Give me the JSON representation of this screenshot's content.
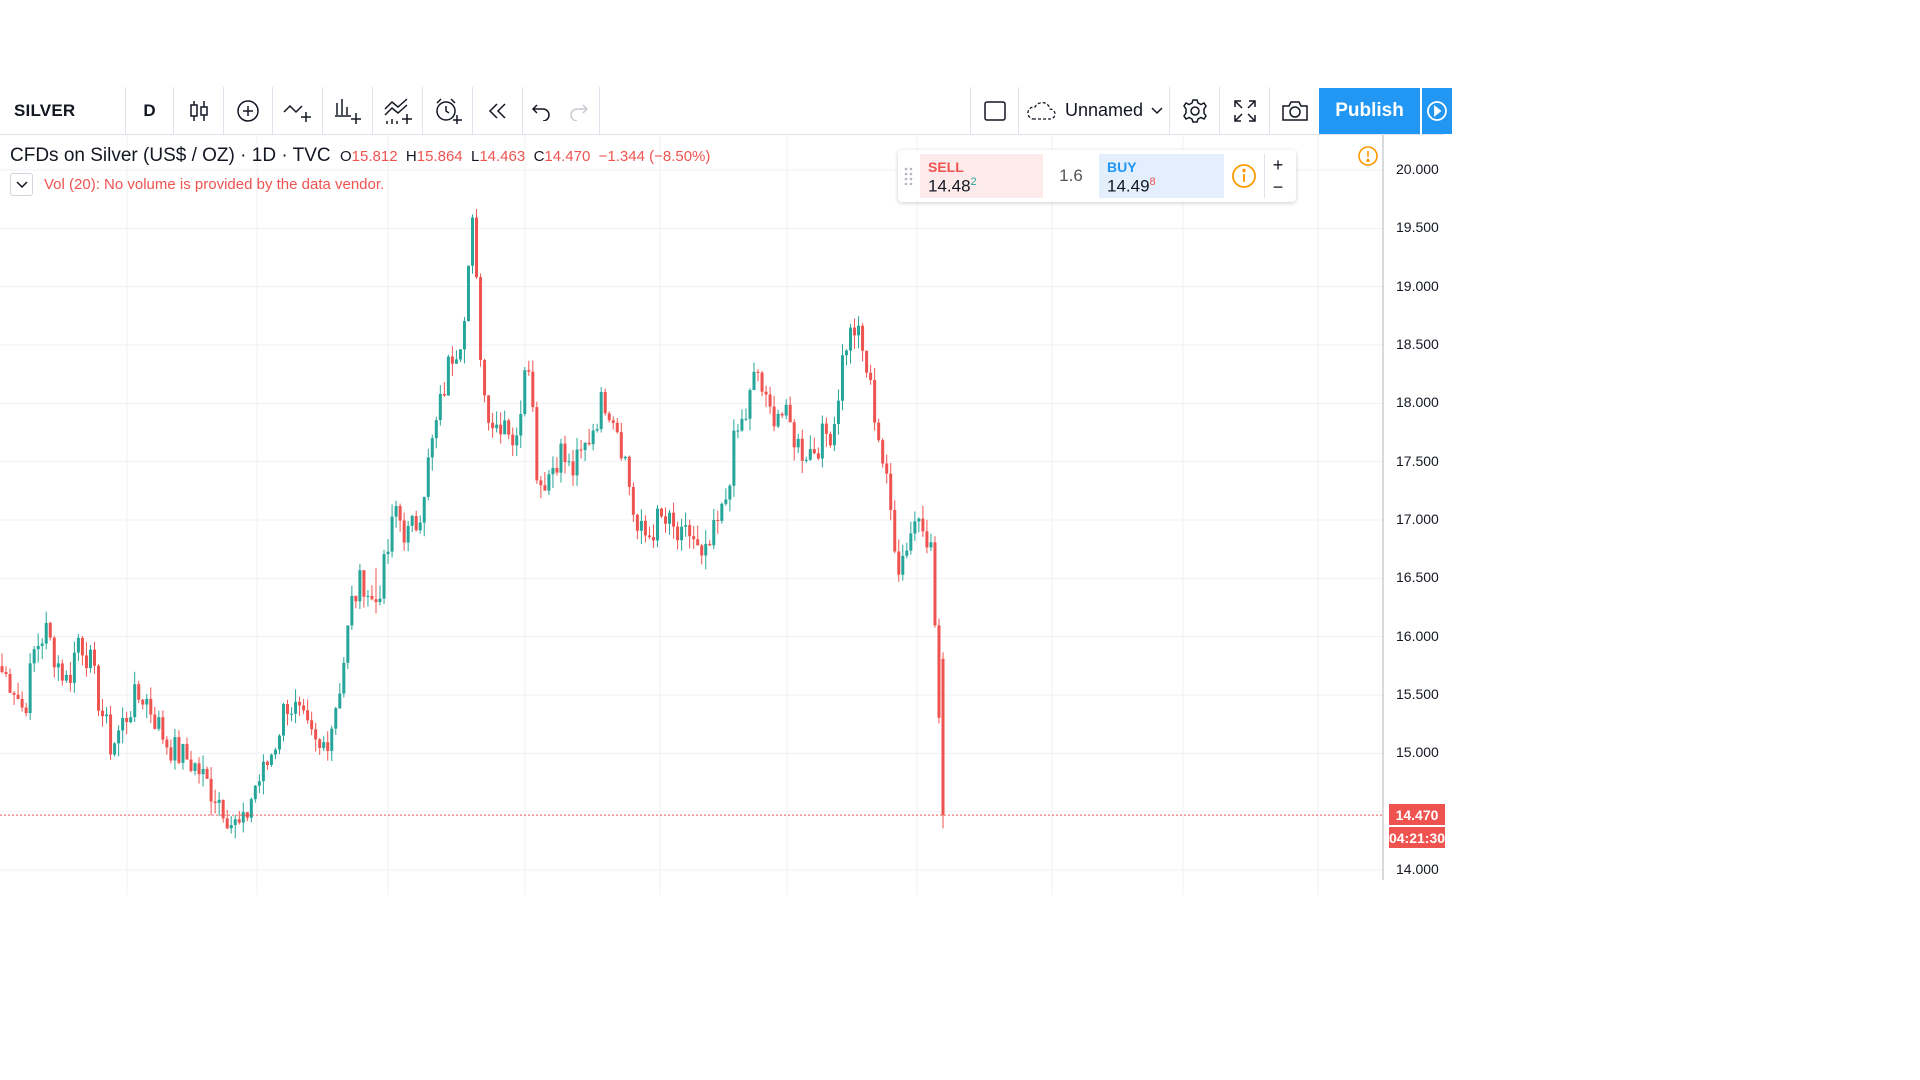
{
  "toolbar": {
    "symbol": "SILVER",
    "interval": "D",
    "layout_name": "Unnamed",
    "publish_label": "Publish",
    "icons": [
      "candles-icon",
      "add-symbol-icon",
      "indicators-icon",
      "financials-icon",
      "templates-icon",
      "alert-icon",
      "replay-icon",
      "undo-icon",
      "redo-icon",
      "layout-icon",
      "cloud-icon",
      "settings-icon",
      "fullscreen-icon",
      "screenshot-icon",
      "play-icon"
    ]
  },
  "legend": {
    "title": "CFDs on Silver (US$ / OZ)",
    "interval": "1D",
    "source": "TVC",
    "open_label": "O",
    "open": "15.812",
    "high_label": "H",
    "high": "15.864",
    "low_label": "L",
    "low": "14.463",
    "close_label": "C",
    "close": "14.470",
    "change": "−1.344 (−8.50%)",
    "volume_text": "Vol (20): No volume is provided by the data vendor."
  },
  "trade_panel": {
    "sell_label": "SELL",
    "sell_price": "14.48",
    "sell_sup": "2",
    "spread": "1.6",
    "buy_label": "BUY",
    "buy_price": "14.49",
    "buy_sup": "8",
    "plus": "+",
    "minus": "−"
  },
  "price_axis": {
    "labels": [
      "20.000",
      "19.500",
      "19.000",
      "18.500",
      "18.000",
      "17.500",
      "17.000",
      "16.500",
      "16.000",
      "15.500",
      "15.000",
      "14.000"
    ],
    "last_price": "14.470",
    "countdown": "04:21:30"
  },
  "colors": {
    "up": "#26a69a",
    "down": "#ef5350",
    "accent": "#2196f3",
    "grid": "#eef1f5"
  },
  "chart_data": {
    "type": "candlestick",
    "title": "CFDs on Silver (US$ / OZ)",
    "interval": "1D",
    "ylim": [
      13.9,
      20.25
    ],
    "last_close": 14.47,
    "close_path": [
      15.7,
      15.6,
      15.35,
      15.9,
      16.05,
      15.8,
      15.6,
      16.0,
      15.8,
      15.4,
      15.05,
      15.25,
      15.45,
      15.5,
      15.3,
      15.1,
      15.0,
      14.95,
      14.85,
      14.7,
      14.6,
      14.4,
      14.35,
      14.7,
      14.85,
      15.1,
      15.45,
      15.35,
      15.15,
      15.0,
      15.2,
      15.65,
      16.3,
      16.5,
      16.25,
      16.6,
      17.1,
      16.85,
      17.0,
      17.5,
      17.95,
      18.4,
      18.6,
      19.5,
      18.1,
      17.8,
      17.9,
      17.6,
      18.6,
      17.3,
      17.4,
      17.6,
      17.4,
      17.55,
      17.8,
      18.05,
      17.9,
      17.5,
      16.9,
      16.85,
      17.0,
      16.95,
      16.8,
      16.9,
      16.6,
      16.85,
      17.1,
      17.7,
      17.9,
      18.3,
      17.9,
      17.95,
      17.8,
      17.6,
      17.6,
      17.7,
      17.8,
      18.5,
      18.65,
      18.3,
      17.8,
      17.2,
      16.6,
      16.9,
      17.1,
      16.7,
      14.47
    ]
  }
}
